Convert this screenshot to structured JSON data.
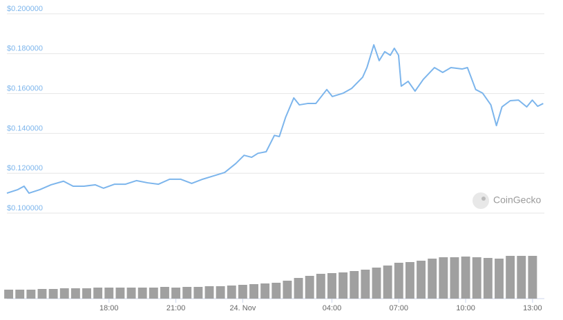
{
  "chart_data": {
    "type": "line",
    "watermark": "CoinGecko",
    "xlim": [
      13.42,
      37.53
    ],
    "xticks": [
      {
        "value": 18,
        "label": "18:00"
      },
      {
        "value": 21,
        "label": "21:00"
      },
      {
        "value": 24,
        "label": "24. Nov"
      },
      {
        "value": 28,
        "label": "04:00"
      },
      {
        "value": 31,
        "label": "07:00"
      },
      {
        "value": 34,
        "label": "10:00"
      },
      {
        "value": 37,
        "label": "13:00"
      }
    ],
    "ylim": [
      0.1,
      0.2
    ],
    "yticks": [
      {
        "value": 0.1,
        "label": "$0.100000"
      },
      {
        "value": 0.12,
        "label": "$0.120000"
      },
      {
        "value": 0.14,
        "label": "$0.140000"
      },
      {
        "value": 0.16,
        "label": "$0.160000"
      },
      {
        "value": 0.18,
        "label": "$0.180000"
      },
      {
        "value": 0.2,
        "label": "$0.200000"
      }
    ],
    "grid": true,
    "color": "#7cb5ec",
    "x": [
      13.42,
      13.91,
      14.19,
      14.41,
      14.9,
      15.4,
      15.96,
      16.39,
      16.88,
      17.38,
      17.75,
      18.25,
      18.74,
      19.23,
      19.73,
      20.22,
      20.72,
      21.21,
      21.71,
      22.2,
      22.7,
      23.19,
      23.69,
      24.06,
      24.4,
      24.68,
      25.05,
      25.42,
      25.64,
      25.92,
      26.29,
      26.54,
      26.91,
      27.28,
      27.77,
      28.02,
      28.51,
      28.89,
      29.38,
      29.57,
      29.88,
      30.12,
      30.37,
      30.62,
      30.8,
      30.99,
      31.11,
      31.42,
      31.73,
      32.1,
      32.6,
      32.97,
      33.34,
      33.84,
      34.08,
      34.45,
      34.76,
      35.13,
      35.38,
      35.63,
      36.0,
      36.37,
      36.74,
      36.99,
      37.23,
      37.48
    ],
    "values": [
      0.11,
      0.1118,
      0.1135,
      0.11,
      0.1118,
      0.1142,
      0.116,
      0.1135,
      0.1135,
      0.1142,
      0.1125,
      0.1145,
      0.1145,
      0.1163,
      0.1152,
      0.1145,
      0.117,
      0.117,
      0.1149,
      0.117,
      0.1187,
      0.1204,
      0.1249,
      0.129,
      0.128,
      0.13,
      0.1308,
      0.139,
      0.1384,
      0.148,
      0.1578,
      0.1543,
      0.155,
      0.155,
      0.162,
      0.1585,
      0.1602,
      0.1626,
      0.1682,
      0.173,
      0.1844,
      0.1765,
      0.181,
      0.1792,
      0.1827,
      0.1792,
      0.1637,
      0.1661,
      0.1612,
      0.1671,
      0.173,
      0.1706,
      0.173,
      0.1723,
      0.173,
      0.162,
      0.1602,
      0.1543,
      0.1439,
      0.1533,
      0.1564,
      0.1567,
      0.1533,
      0.1567,
      0.1536,
      0.155
    ],
    "volume": {
      "color": "#a0a0a0",
      "ylim": [
        0,
        70
      ],
      "x": [
        13.5,
        14,
        14.5,
        15,
        15.5,
        16,
        16.5,
        17,
        17.5,
        18,
        18.5,
        19,
        19.5,
        20,
        20.5,
        21,
        21.5,
        22,
        22.5,
        23,
        23.5,
        24,
        24.5,
        25,
        25.5,
        26,
        26.5,
        27,
        27.5,
        28,
        28.5,
        29,
        29.5,
        30,
        30.5,
        31,
        31.5,
        32,
        32.5,
        33,
        33.5,
        34,
        34.5,
        35,
        35.5,
        36,
        36.5,
        37
      ],
      "values": [
        13,
        13,
        13,
        14,
        14,
        15,
        15,
        15,
        16,
        16,
        16,
        16,
        16,
        16,
        17,
        16,
        17,
        17,
        18,
        18,
        19,
        20,
        21,
        22,
        23,
        26,
        30,
        33,
        36,
        37,
        38,
        40,
        42,
        45,
        48,
        52,
        53,
        55,
        58,
        60,
        60,
        61,
        60,
        59,
        58,
        62,
        62,
        62
      ]
    }
  }
}
